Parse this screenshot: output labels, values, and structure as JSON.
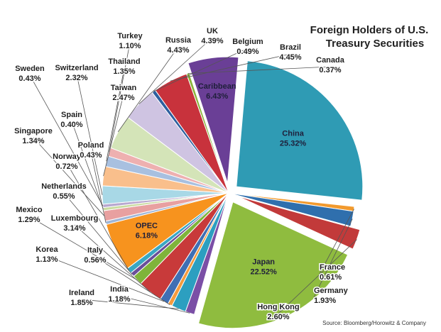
{
  "chart_data": {
    "type": "pie",
    "title": [
      "Foreign Holders of U.S.",
      "Treasury Securities"
    ],
    "source": "Source: Bloomberg/Horowitz & Company",
    "unit": "%",
    "slices": [
      {
        "name": "China",
        "value": 25.32,
        "display": "25.32%",
        "color": "#2f9bb4",
        "exploded": true,
        "label_inside": true
      },
      {
        "name": "France",
        "value": 0.61,
        "display": "0.61%",
        "color": "#f29a2e"
      },
      {
        "name": "Germany",
        "value": 1.93,
        "display": "1.93%",
        "color": "#2f6fad"
      },
      {
        "name": "Hong Kong",
        "value": 2.6,
        "display": "2.60%",
        "color": "#c23a3a",
        "exploded": true
      },
      {
        "name": "Japan",
        "value": 22.52,
        "display": "22.52%",
        "color": "#8fbc3f",
        "exploded": true,
        "label_inside": true
      },
      {
        "name": "India",
        "value": 1.18,
        "display": "1.18%",
        "color": "#7b4fa6"
      },
      {
        "name": "Ireland",
        "value": 1.85,
        "display": "1.85%",
        "color": "#2c9fc0"
      },
      {
        "name": "Italy",
        "value": 0.56,
        "display": "0.56%",
        "color": "#f59b3d"
      },
      {
        "name": "Korea",
        "value": 1.13,
        "display": "1.13%",
        "color": "#3f6fb4"
      },
      {
        "name": "Luxembourg",
        "value": 3.14,
        "display": "3.14%",
        "color": "#c83a3a"
      },
      {
        "name": "Mexico",
        "value": 1.29,
        "display": "1.29%",
        "color": "#7fb43a"
      },
      {
        "name": "Netherlands",
        "value": 0.55,
        "display": "0.55%",
        "color": "#6a4f9a"
      },
      {
        "name": "Norway",
        "value": 0.72,
        "display": "0.72%",
        "color": "#3aa7c3"
      },
      {
        "name": "OPEC",
        "value": 6.18,
        "display": "6.18%",
        "color": "#f7931e",
        "label_inside": true
      },
      {
        "name": "Poland",
        "value": 0.43,
        "display": "0.43%",
        "color": "#9fb6d8"
      },
      {
        "name": "Singapore",
        "value": 1.34,
        "display": "1.34%",
        "color": "#e8a0a0"
      },
      {
        "name": "Spain",
        "value": 0.4,
        "display": "0.40%",
        "color": "#c9dca0"
      },
      {
        "name": "Sweden",
        "value": 0.43,
        "display": "0.43%",
        "color": "#b8a8d0"
      },
      {
        "name": "Switzerland",
        "value": 2.32,
        "display": "2.32%",
        "color": "#a8d8e6"
      },
      {
        "name": "Taiwan",
        "value": 2.47,
        "display": "2.47%",
        "color": "#f9bf8c"
      },
      {
        "name": "Thailand",
        "value": 1.35,
        "display": "1.35%",
        "color": "#a8c0e0"
      },
      {
        "name": "Turkey",
        "value": 1.1,
        "display": "1.10%",
        "color": "#eeb0b0"
      },
      {
        "name": "Russia",
        "value": 4.43,
        "display": "4.43%",
        "color": "#d4e4b8"
      },
      {
        "name": "UK",
        "value": 4.39,
        "display": "4.39%",
        "color": "#cfc4e2"
      },
      {
        "name": "Belgium",
        "value": 0.49,
        "display": "0.49%",
        "color": "#2e5f9e"
      },
      {
        "name": "Brazil",
        "value": 4.45,
        "display": "4.45%",
        "color": "#c8323c"
      },
      {
        "name": "Canada",
        "value": 0.37,
        "display": "0.37%",
        "color": "#8ab43a"
      },
      {
        "name": "Caribbean",
        "value": 6.43,
        "display": "6.43%",
        "color": "#6a3f96",
        "exploded": true,
        "label_inside": true
      }
    ]
  }
}
